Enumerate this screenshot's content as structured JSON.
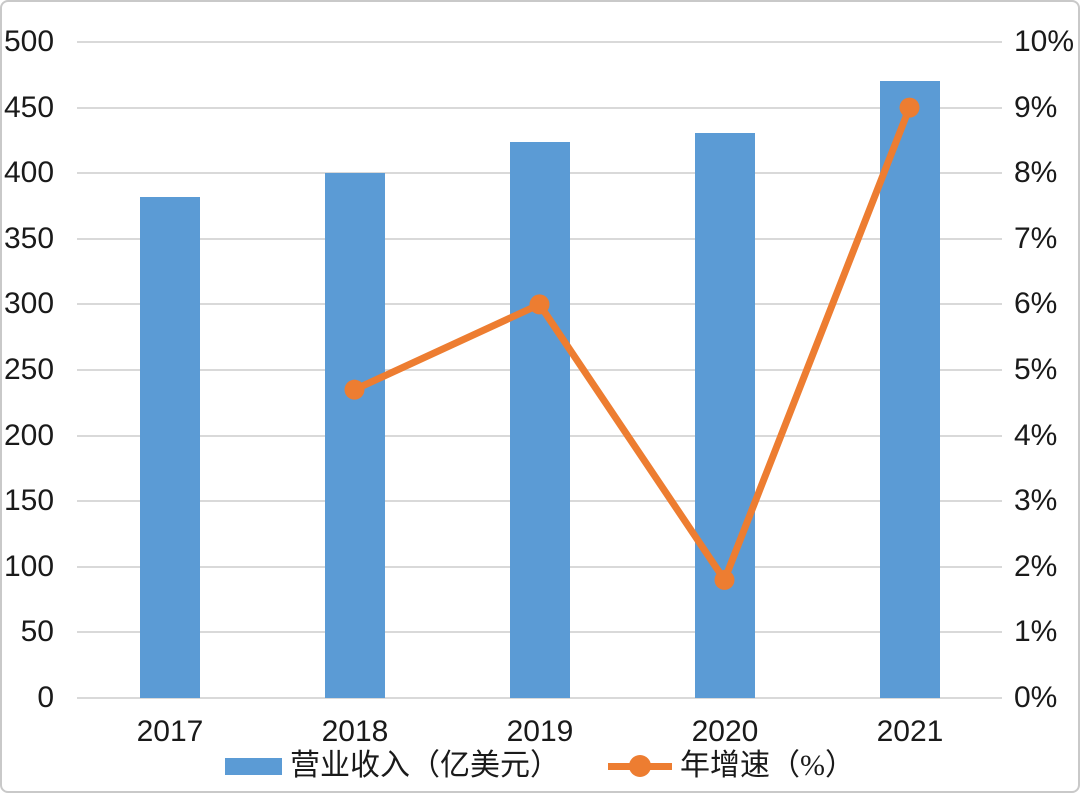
{
  "chart_data": {
    "type": "bar",
    "subtype": "combo-bar-line",
    "title": "",
    "categories": [
      "2017",
      "2018",
      "2019",
      "2020",
      "2021"
    ],
    "series": [
      {
        "name": "营业收入（亿美元）",
        "type": "bar",
        "axis": "left",
        "color": "#5b9bd5",
        "values": [
          382,
          400,
          424,
          431,
          470
        ]
      },
      {
        "name": "年增速（%）",
        "type": "line",
        "axis": "right",
        "color": "#ed7d31",
        "values": [
          null,
          4.7,
          6.0,
          1.8,
          9.0
        ]
      }
    ],
    "left_axis": {
      "min": 0,
      "max": 500,
      "step": 50,
      "suffix": ""
    },
    "right_axis": {
      "min": 0,
      "max": 10,
      "step": 1,
      "suffix": "%"
    },
    "grid": true,
    "gridline_color": "#d9d9d9",
    "legend_position": "bottom"
  },
  "legend": {
    "items": [
      {
        "label": "营业收入（亿美元）",
        "marker": "bar-swatch",
        "color": "#5b9bd5"
      },
      {
        "label": "年增速（%）",
        "marker": "line-dot",
        "color": "#ed7d31"
      }
    ]
  },
  "colors": {
    "bar": "#5b9bd5",
    "line": "#ed7d31",
    "grid": "#d9d9d9",
    "text": "#1a1a1a",
    "border": "#c9c9c9",
    "background": "#ffffff"
  }
}
